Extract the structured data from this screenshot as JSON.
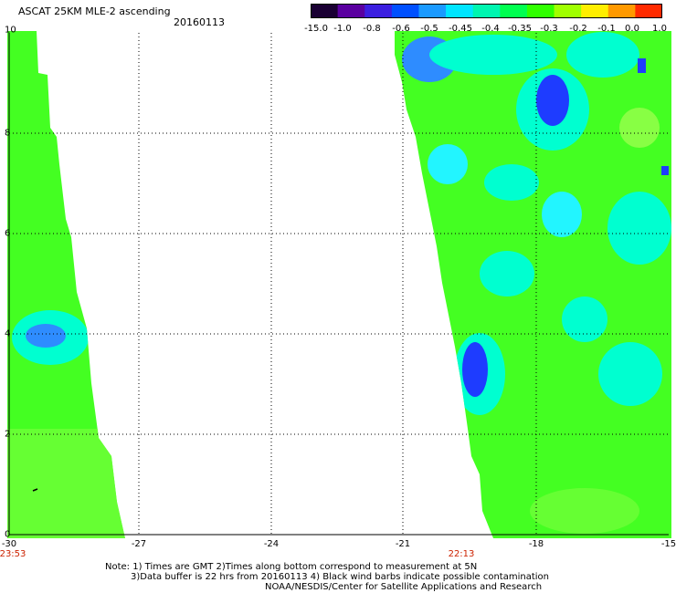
{
  "header": {
    "title": "ASCAT 25KM MLE-2 ascending",
    "date": "20160113"
  },
  "colorbar": {
    "ticks": [
      "-15.0",
      "-1.0",
      "-0.8",
      "-0.6",
      "-0.5",
      "-0.45",
      "-0.4",
      "-0.35",
      "-0.3",
      "-0.2",
      "-0.1",
      "0.0",
      "1.0"
    ],
    "colors": [
      "#1a0033",
      "#5a00a0",
      "#3b1fe0",
      "#0050ff",
      "#1a9aff",
      "#00e5ff",
      "#00f5b0",
      "#00ff50",
      "#30ff00",
      "#a0ff00",
      "#ffee00",
      "#ff9900",
      "#ff2a00"
    ]
  },
  "map": {
    "y_ticks": [
      "0",
      "2",
      "4",
      "6",
      "8",
      "10"
    ],
    "x_ticks": [
      "-30",
      "-27",
      "-24",
      "-21",
      "-18",
      "-15"
    ],
    "swath_times": [
      "23:53",
      "22:13"
    ],
    "swath_colors": {
      "ok": "#44ff22",
      "mid": "#66ff33",
      "cyan": "#00ffd0",
      "light": "#22f5ff",
      "blue": "#2e8cff",
      "deep": "#1e3cff"
    }
  },
  "notes": [
    "Note: 1) Times are GMT 2)Times along bottom correspond to measurement at 5N",
    "3)Data buffer is 22 hrs from 20160113 4) Black wind barbs indicate possible contamination",
    "NOAA/NESDIS/Center for Satellite Applications and Research"
  ]
}
